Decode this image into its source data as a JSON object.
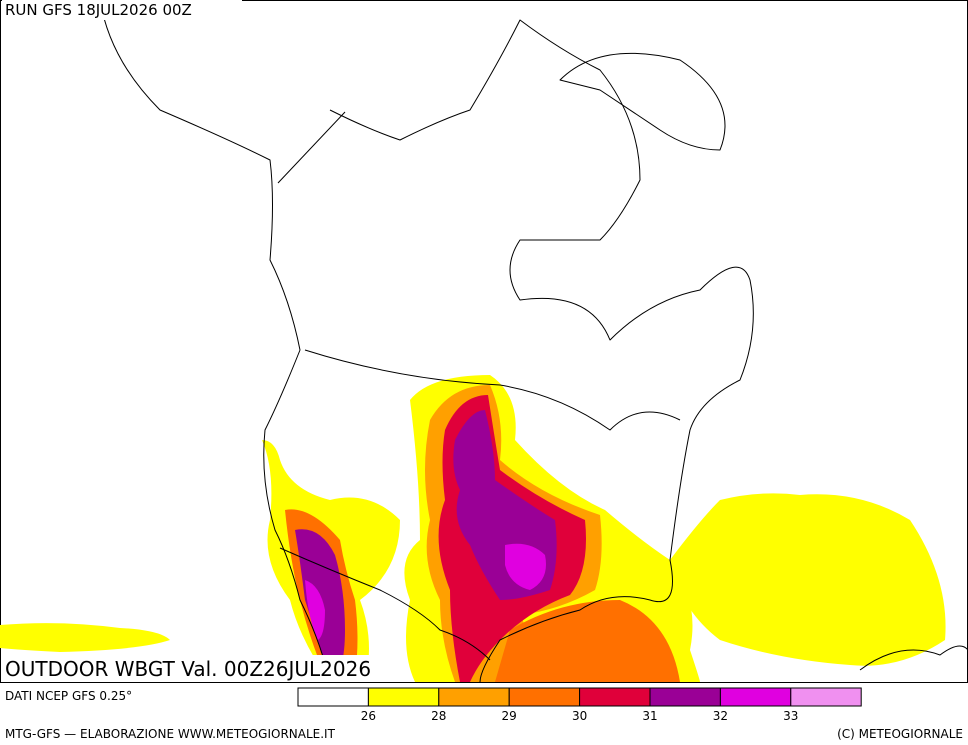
{
  "header": {
    "run": "RUN GFS 18JUL2026 00Z"
  },
  "map": {
    "title": "OUTDOOR WBGT Val. 00Z26JUL2026"
  },
  "legend": {
    "source": "DATI NCEP GFS 0.25°",
    "colors": [
      "#ffffff",
      "#ffff00",
      "#ffa000",
      "#ff7000",
      "#e0003a",
      "#9a0096",
      "#e000e0",
      "#f090f0"
    ],
    "labels": [
      26,
      28,
      29,
      30,
      31,
      32,
      33
    ]
  },
  "footer": {
    "left": "MTG-GFS — ELABORAZIONE WWW.METEOGIORNALE.IT",
    "right": "(C) METEOGIORNALE"
  }
}
